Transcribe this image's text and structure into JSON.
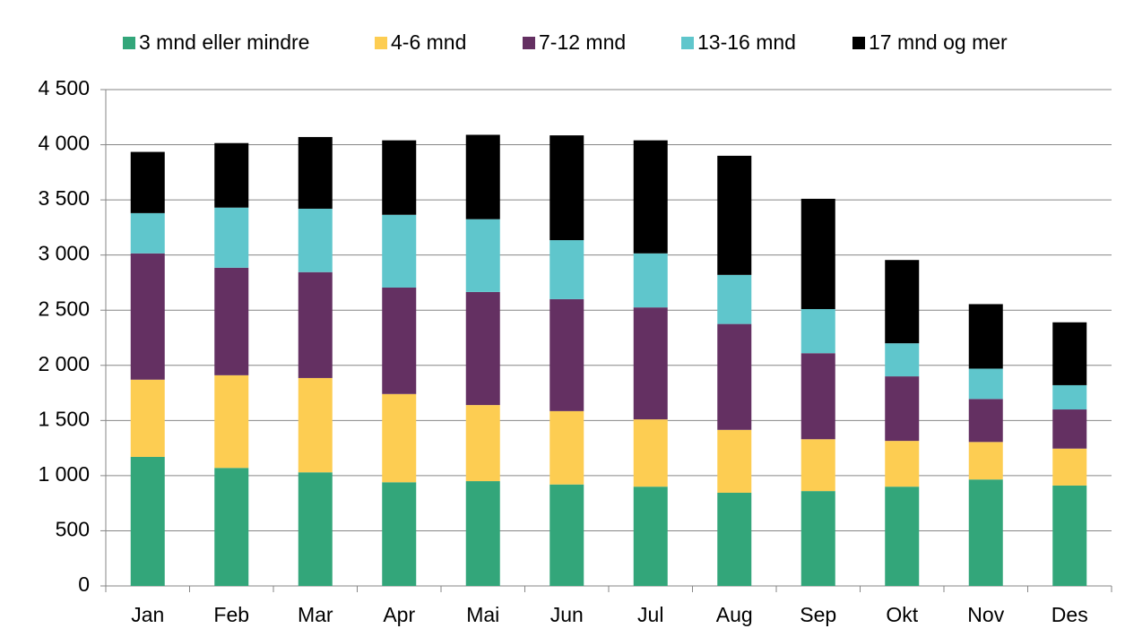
{
  "chart_data": {
    "type": "stacked_bar",
    "categories": [
      "Jan",
      "Feb",
      "Mar",
      "Apr",
      "Mai",
      "Jun",
      "Jul",
      "Aug",
      "Sep",
      "Okt",
      "Nov",
      "Des"
    ],
    "series": [
      {
        "name": "3 mnd eller mindre",
        "color": "#33a67a",
        "values": [
          1170,
          1070,
          1030,
          940,
          950,
          920,
          900,
          845,
          860,
          900,
          965,
          910
        ]
      },
      {
        "name": "4-6 mnd",
        "color": "#fdcd52",
        "values": [
          700,
          840,
          855,
          800,
          690,
          665,
          610,
          570,
          470,
          415,
          340,
          335
        ]
      },
      {
        "name": "7-12 mnd",
        "color": "#643062",
        "values": [
          1145,
          975,
          960,
          965,
          1025,
          1015,
          1015,
          960,
          780,
          585,
          390,
          355
        ]
      },
      {
        "name": "13-16 mnd",
        "color": "#5fc6cc",
        "values": [
          365,
          545,
          575,
          660,
          660,
          535,
          490,
          445,
          400,
          300,
          275,
          220
        ]
      },
      {
        "name": "17 mnd og mer",
        "color": "#000000",
        "values": [
          555,
          585,
          650,
          675,
          765,
          950,
          1025,
          1080,
          1000,
          755,
          585,
          570
        ]
      }
    ],
    "ylim": [
      0,
      4500
    ],
    "yticks": [
      0,
      500,
      {
        "value": 1000,
        "label": "1 000"
      },
      {
        "value": 1500,
        "label": "1 500"
      },
      {
        "value": 2000,
        "label": "2 000"
      },
      {
        "value": 2500,
        "label": "2 500"
      },
      {
        "value": 3000,
        "label": "3 000"
      },
      {
        "value": 3500,
        "label": "3 500"
      },
      {
        "value": 4000,
        "label": "4 000"
      },
      {
        "value": 4500,
        "label": "4 500"
      }
    ],
    "grid": true,
    "legend": "top"
  }
}
